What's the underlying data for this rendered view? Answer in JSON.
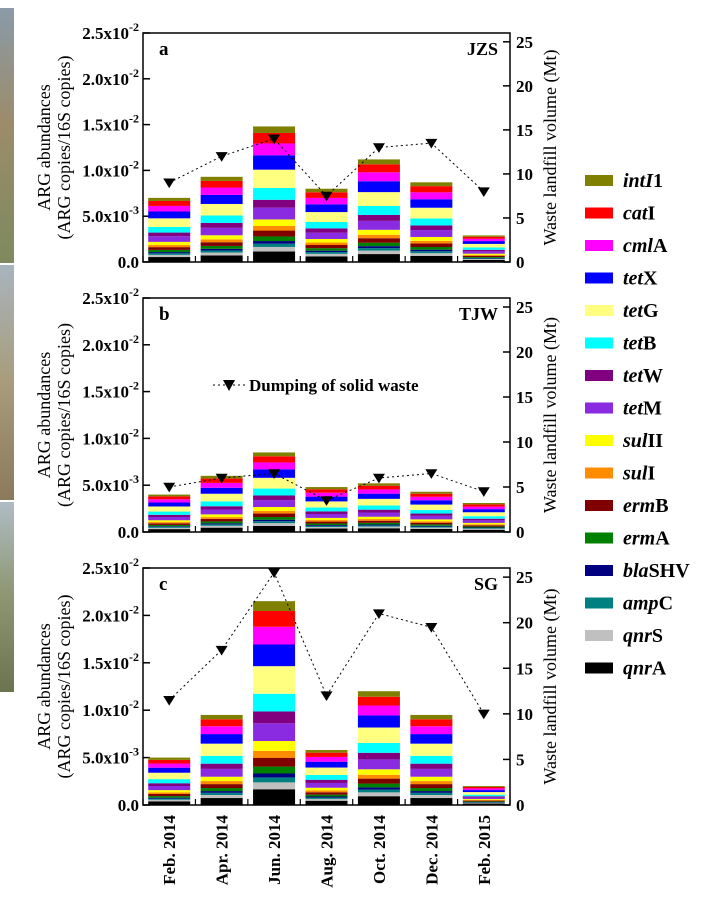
{
  "chart_data": [
    {
      "type": "bar",
      "stacked": true,
      "panel": "a",
      "site": "JZS",
      "categories": [
        "Feb. 2014",
        "Apr. 2014",
        "Jun. 2014",
        "Aug. 2014",
        "Oct. 2014",
        "Dec. 2014",
        "Feb. 2015"
      ],
      "ylabel": "ARG abundances",
      "ylabel2": "(ARG copies/16S copies)",
      "y2label": "Waste landfill volume (Mt)",
      "ylim": [
        0,
        0.025
      ],
      "y2lim": [
        0,
        26
      ],
      "yticks": [
        {
          "v": 0,
          "base": "0.0",
          "exp": ""
        },
        {
          "v": 0.005,
          "base": "5.0x10",
          "exp": "-3"
        },
        {
          "v": 0.01,
          "base": "1.0x10",
          "exp": "-2"
        },
        {
          "v": 0.015,
          "base": "1.5x10",
          "exp": "-2"
        },
        {
          "v": 0.02,
          "base": "2.0x10",
          "exp": "-2"
        },
        {
          "v": 0.025,
          "base": "2.5x10",
          "exp": "-2"
        }
      ],
      "y2ticks": [
        0,
        5,
        10,
        15,
        20,
        25
      ],
      "totals": [
        0.007,
        0.0093,
        0.0148,
        0.008,
        0.0112,
        0.0087,
        0.0029
      ],
      "landfill": [
        9.0,
        12.0,
        14.0,
        7.5,
        13.0,
        13.5,
        8.0
      ]
    },
    {
      "type": "bar",
      "stacked": true,
      "panel": "b",
      "site": "TJW",
      "categories": [
        "Feb. 2014",
        "Apr. 2014",
        "Jun. 2014",
        "Aug. 2014",
        "Oct. 2014",
        "Dec. 2014",
        "Feb. 2015"
      ],
      "ylabel": "ARG abundances",
      "ylabel2": "(ARG copies/16S copies)",
      "y2label": "Waste landfill volume (Mt)",
      "annotation": "Dumping of solid waste",
      "ylim": [
        0,
        0.025
      ],
      "y2lim": [
        0,
        26
      ],
      "yticks": [
        {
          "v": 0,
          "base": "0.0",
          "exp": ""
        },
        {
          "v": 0.005,
          "base": "5.0x10",
          "exp": "-3"
        },
        {
          "v": 0.01,
          "base": "1.0x10",
          "exp": "-2"
        },
        {
          "v": 0.015,
          "base": "1.5x10",
          "exp": "-2"
        },
        {
          "v": 0.02,
          "base": "2.0x10",
          "exp": "-2"
        },
        {
          "v": 0.025,
          "base": "2.5x10",
          "exp": "-2"
        }
      ],
      "y2ticks": [
        0,
        5,
        10,
        15,
        20,
        25
      ],
      "totals": [
        0.004,
        0.006,
        0.0085,
        0.0048,
        0.0052,
        0.0043,
        0.0031
      ],
      "landfill": [
        5.0,
        6.0,
        6.5,
        3.5,
        6.0,
        6.5,
        4.5
      ]
    },
    {
      "type": "bar",
      "stacked": true,
      "panel": "c",
      "site": "SG",
      "categories": [
        "Feb. 2014",
        "Apr. 2014",
        "Jun. 2014",
        "Aug. 2014",
        "Oct. 2014",
        "Dec. 2014",
        "Feb. 2015"
      ],
      "ylabel": "ARG abundances",
      "ylabel2": "(ARG copies/16S copies)",
      "y2label": "Waste landfill volume (Mt)",
      "ylim": [
        0,
        0.025
      ],
      "y2lim": [
        0,
        26
      ],
      "yticks": [
        {
          "v": 0,
          "base": "0.0",
          "exp": ""
        },
        {
          "v": 0.005,
          "base": "5.0x10",
          "exp": "-3"
        },
        {
          "v": 0.01,
          "base": "1.0x10",
          "exp": "-2"
        },
        {
          "v": 0.015,
          "base": "1.5x10",
          "exp": "-2"
        },
        {
          "v": 0.02,
          "base": "2.0x10",
          "exp": "-2"
        },
        {
          "v": 0.025,
          "base": "2.5x10",
          "exp": "-2"
        }
      ],
      "y2ticks": [
        0,
        5,
        10,
        15,
        20,
        25
      ],
      "totals": [
        0.005,
        0.0095,
        0.0215,
        0.0058,
        0.012,
        0.0095,
        0.002
      ],
      "landfill": [
        11.5,
        17.0,
        25.5,
        12.0,
        21.0,
        19.5,
        10.0
      ]
    }
  ],
  "genes": [
    {
      "pre": "",
      "ital": "intI",
      "post": "1",
      "color": "#808000"
    },
    {
      "pre": "",
      "ital": "cat",
      "post": "I",
      "color": "#ff0000"
    },
    {
      "pre": "",
      "ital": "cml",
      "post": "A",
      "color": "#ff00ff"
    },
    {
      "pre": "",
      "ital": "tet",
      "post": "X",
      "color": "#0000ff"
    },
    {
      "pre": "",
      "ital": "tet",
      "post": "G",
      "color": "#ffff80"
    },
    {
      "pre": "",
      "ital": "tet",
      "post": "B",
      "color": "#00ffff"
    },
    {
      "pre": "",
      "ital": "tet",
      "post": "W",
      "color": "#800080"
    },
    {
      "pre": "",
      "ital": "tet",
      "post": "M",
      "color": "#8a2be2"
    },
    {
      "pre": "",
      "ital": "sul",
      "post": "II",
      "color": "#ffff00"
    },
    {
      "pre": "",
      "ital": "sul",
      "post": "I",
      "color": "#ff8c00"
    },
    {
      "pre": "",
      "ital": "erm",
      "post": "B",
      "color": "#800000"
    },
    {
      "pre": "",
      "ital": "erm",
      "post": "A",
      "color": "#008000"
    },
    {
      "pre": "",
      "ital": "bla",
      "post": "SHV",
      "color": "#000080"
    },
    {
      "pre": "",
      "ital": "amp",
      "post": "C",
      "color": "#008080"
    },
    {
      "pre": "",
      "ital": "qnr",
      "post": "S",
      "color": "#c0c0c0"
    },
    {
      "pre": "",
      "ital": "qnr",
      "post": "A",
      "color": "#000000"
    }
  ],
  "stack_fractions": [
    0.05,
    0.08,
    0.09,
    0.11,
    0.14,
    0.09,
    0.06,
    0.09,
    0.05,
    0.035,
    0.045,
    0.035,
    0.02,
    0.025,
    0.035,
    0.08
  ],
  "colors": {
    "axis": "#000000",
    "marker": "#000000",
    "photo_top": [
      "#8a9aa8",
      "#9c8c6a",
      "#7d8a5e"
    ],
    "photo_mid": [
      "#a8b4be",
      "#a89c7a",
      "#8a7a5a"
    ],
    "photo_bot": [
      "#b0bcc4",
      "#8c9670",
      "#6a744e"
    ]
  }
}
